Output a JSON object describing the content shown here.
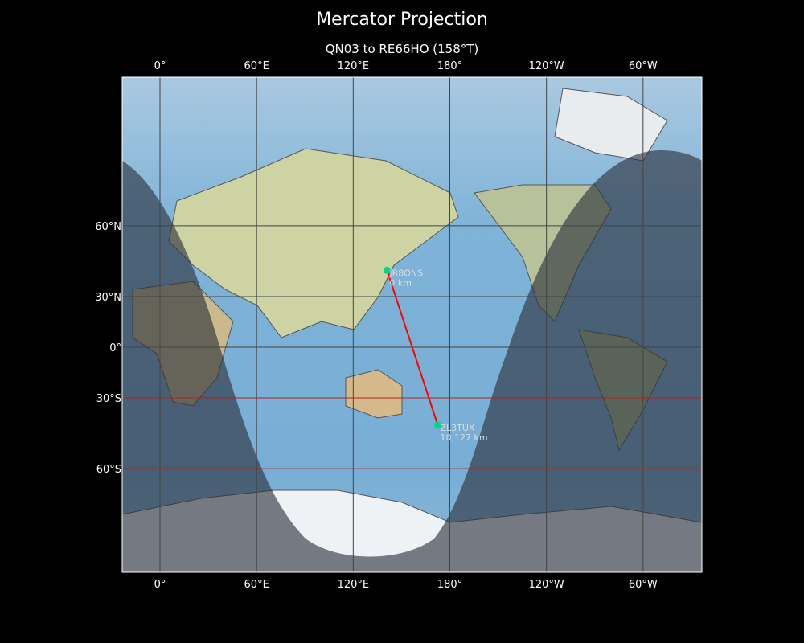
{
  "title": "Mercator Projection",
  "subtitle": "QN03 to RE66HO (158°T)",
  "map": {
    "projection": "mercator",
    "lon_range": [
      -23.5,
      336.5
    ],
    "lat_range": [
      -80,
      84
    ],
    "lon_ticks": [
      {
        "lon": 0,
        "label": "0°"
      },
      {
        "lon": 60,
        "label": "60°E"
      },
      {
        "lon": 120,
        "label": "120°E"
      },
      {
        "lon": 180,
        "label": "180°"
      },
      {
        "lon": 240,
        "label": "120°W"
      },
      {
        "lon": 300,
        "label": "60°W"
      }
    ],
    "lat_ticks": [
      {
        "lat": 60,
        "label": "60°N"
      },
      {
        "lat": 30,
        "label": "30°N"
      },
      {
        "lat": 0,
        "label": "0°"
      },
      {
        "lat": -30,
        "label": "30°S"
      },
      {
        "lat": -60,
        "label": "60°S"
      }
    ],
    "colors": {
      "ocean": "#7fb3d8",
      "grid": "#444444",
      "grid_south": "#b22222",
      "path": "#ff0000",
      "station": "#00d68f",
      "night": "#2a2f3a"
    },
    "stations": [
      {
        "call": "JR8ONS",
        "distance": "0 km",
        "lon": 141,
        "lat": 43
      },
      {
        "call": "ZL3TUX",
        "distance": "10,127 km",
        "lon": 172.5,
        "lat": -43.5
      }
    ]
  }
}
